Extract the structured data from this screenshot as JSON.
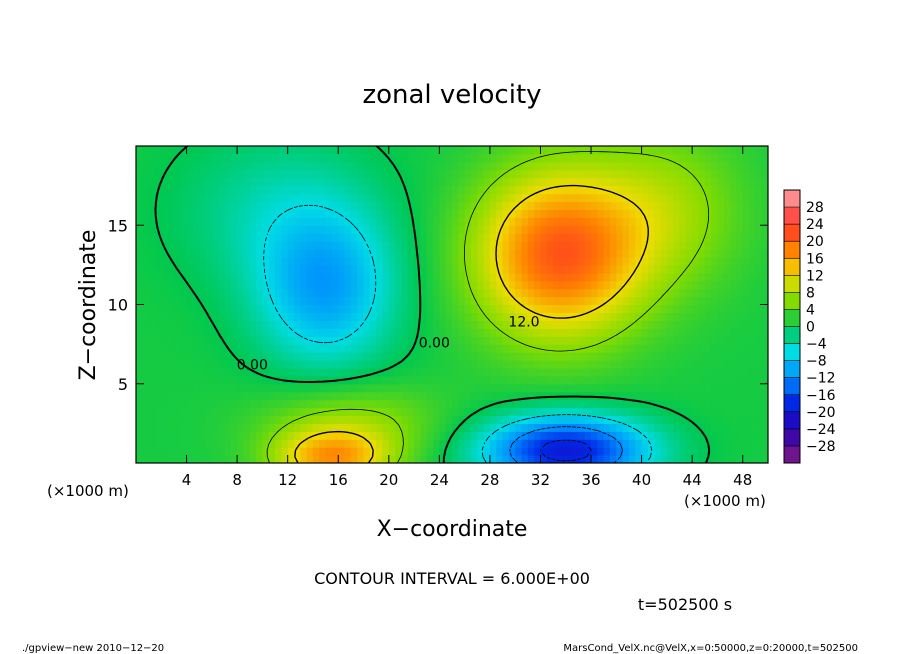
{
  "chart_data": {
    "type": "heatmap",
    "title": "zonal velocity",
    "xlabel": "X−coordinate",
    "ylabel": "Z−coordinate",
    "x_units_left": "(×1000 m)",
    "x_units_right": "(×1000 m)",
    "xlim": [
      0,
      50
    ],
    "ylim": [
      0,
      20
    ],
    "x_ticks": [
      4,
      8,
      12,
      16,
      20,
      24,
      28,
      32,
      36,
      40,
      44,
      48
    ],
    "y_ticks": [
      5,
      10,
      15
    ],
    "colorbar": {
      "levels": [
        -28,
        -24,
        -20,
        -16,
        -12,
        -8,
        -4,
        0,
        4,
        8,
        12,
        16,
        20,
        24,
        28
      ],
      "labels": [
        "28",
        "24",
        "20",
        "16",
        "12",
        "8",
        "4",
        "0",
        "−4",
        "−8",
        "−12",
        "−16",
        "−20",
        "−24",
        "−28"
      ]
    },
    "contour_labels": [
      {
        "text": "0.00",
        "x": 9.2,
        "y": 5.9
      },
      {
        "text": "0.00",
        "x": 23.6,
        "y": 7.3
      },
      {
        "text": "12.0",
        "x": 30.7,
        "y": 8.6
      }
    ],
    "features": [
      {
        "kind": "max",
        "value": 18,
        "x": 34,
        "y": 12.5
      },
      {
        "kind": "max",
        "value": 14,
        "x": 15,
        "y": 0.8
      },
      {
        "kind": "min",
        "value": -18,
        "x": 34,
        "y": 1.2
      },
      {
        "kind": "min",
        "value": -10,
        "x": 14,
        "y": 11
      }
    ],
    "contour_interval": "CONTOUR INTERVAL = 6.000E+00",
    "time": "t=502500 s",
    "grid": false
  },
  "footer": {
    "left": "./gpview−new  2010−12−20",
    "right": "MarsCond_VelX.nc@VelX,x=0:50000,z=0:20000,t=502500"
  },
  "colors": {
    "background": "#ffffff",
    "axis": "#000000"
  }
}
